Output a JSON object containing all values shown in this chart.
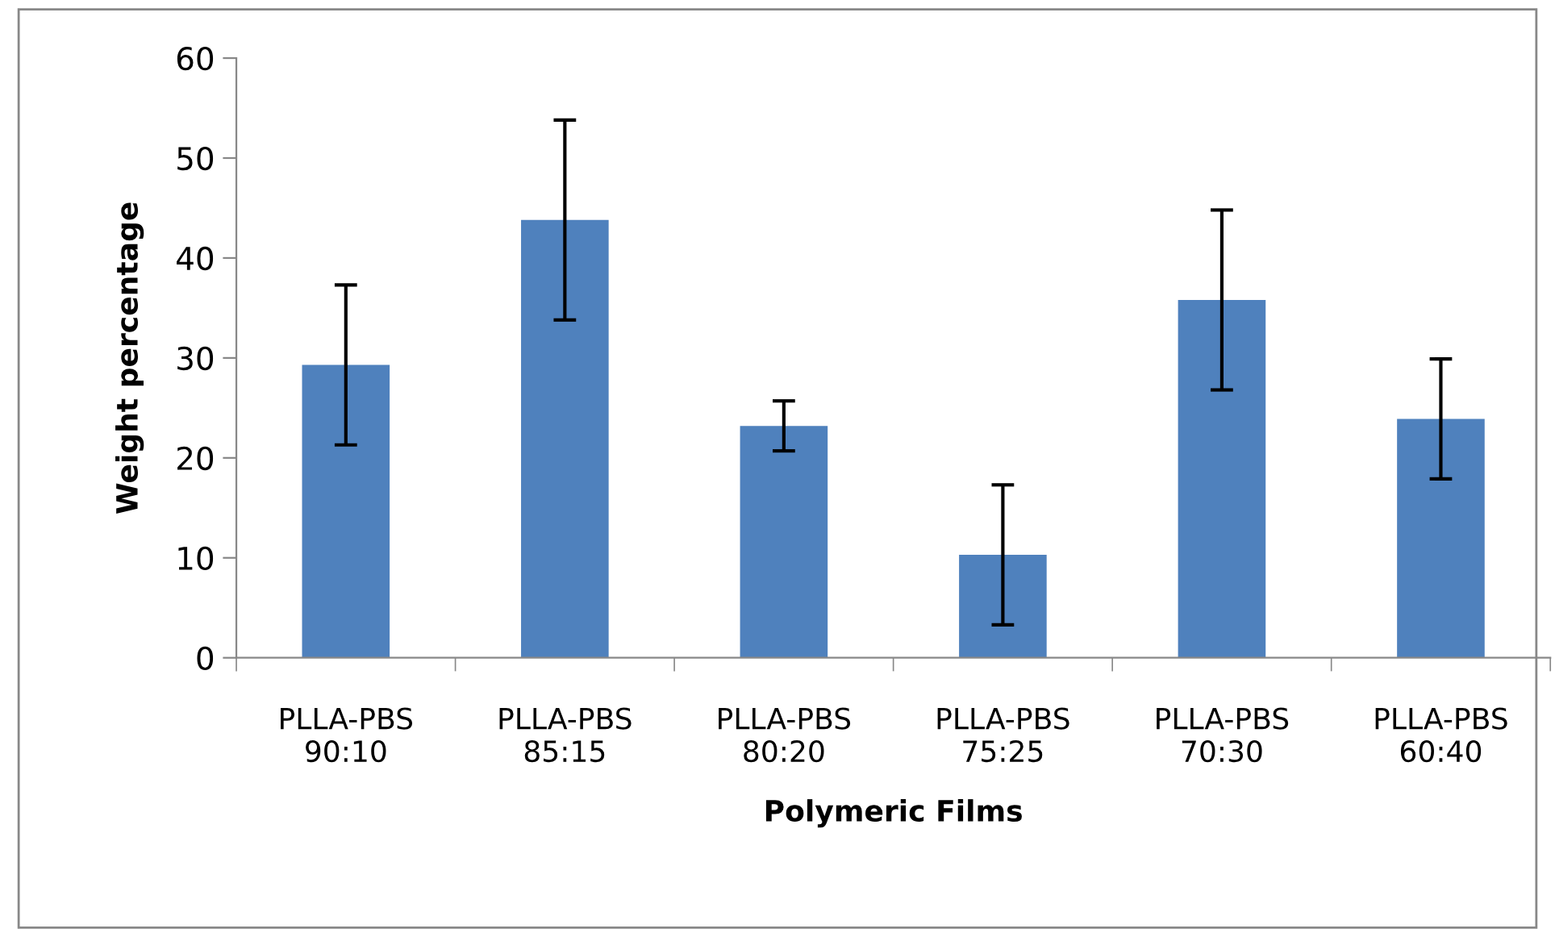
{
  "chart_data": {
    "type": "bar",
    "xlabel": "Polymeric Films",
    "ylabel": "Weight percentage",
    "categories": [
      "PLLA-PBS\n90:10",
      "PLLA-PBS\n85:15",
      "PLLA-PBS\n80:20",
      "PLLA-PBS\n75:25",
      "PLLA-PBS\n70:30",
      "PLLA-PBS\n60:40"
    ],
    "values": [
      29.3,
      43.8,
      23.2,
      10.3,
      35.8,
      23.9
    ],
    "errors": [
      8,
      10,
      2.5,
      7,
      9,
      6
    ],
    "color": "#4f81bd",
    "ylim": [
      0,
      60
    ],
    "yticks": [
      0,
      10,
      20,
      30,
      40,
      50,
      60
    ],
    "grid": false,
    "legend": false
  }
}
